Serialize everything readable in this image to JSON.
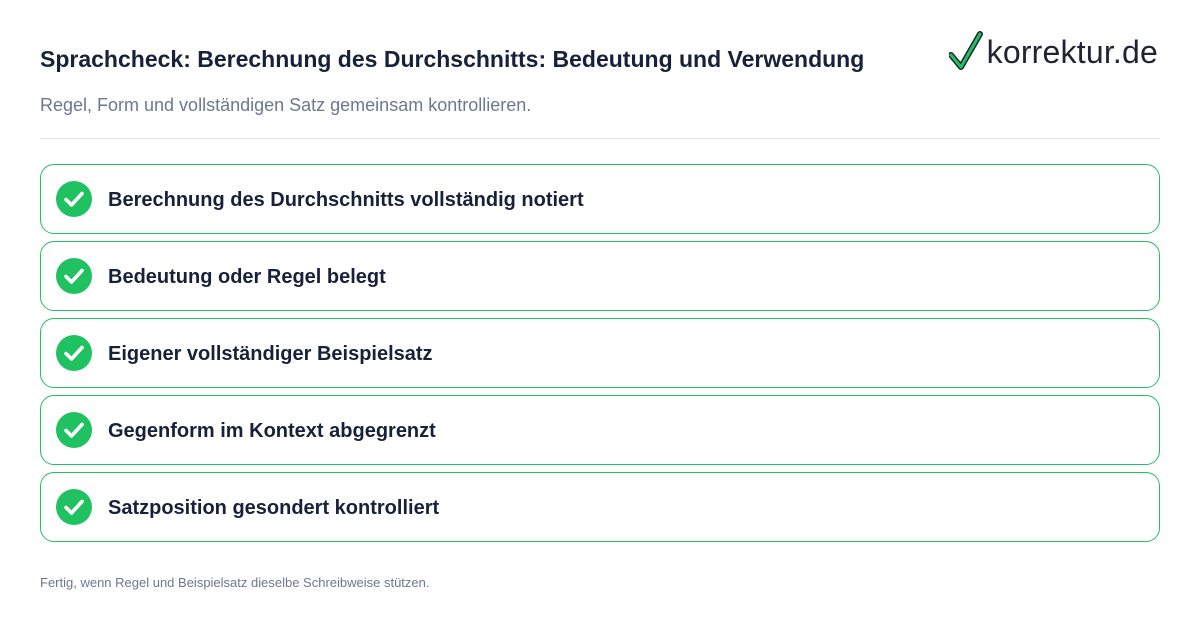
{
  "header": {
    "title": "Sprachcheck: Berechnung des Durchschnitts: Bedeutung und Verwendung",
    "subtitle": "Regel, Form und vollständigen Satz gemeinsam kontrollieren."
  },
  "logo": {
    "text": "korrektur.de",
    "icon": "checkmark-icon"
  },
  "checklist": {
    "items": [
      {
        "label": "Berechnung des Durchschnitts vollständig notiert",
        "checked": true
      },
      {
        "label": "Bedeutung oder Regel belegt",
        "checked": true
      },
      {
        "label": "Eigener vollständiger Beispielsatz",
        "checked": true
      },
      {
        "label": "Gegenform im Kontext abgegrenzt",
        "checked": true
      },
      {
        "label": "Satzposition gesondert kontrolliert",
        "checked": true
      }
    ]
  },
  "footer": {
    "text": "Fertig, wenn Regel und Beispielsatz dieselbe Schreibweise stützen."
  },
  "colors": {
    "accent": "#22c063",
    "check_fill": "#1fc160",
    "title": "#18213a",
    "muted": "#6b7891"
  }
}
